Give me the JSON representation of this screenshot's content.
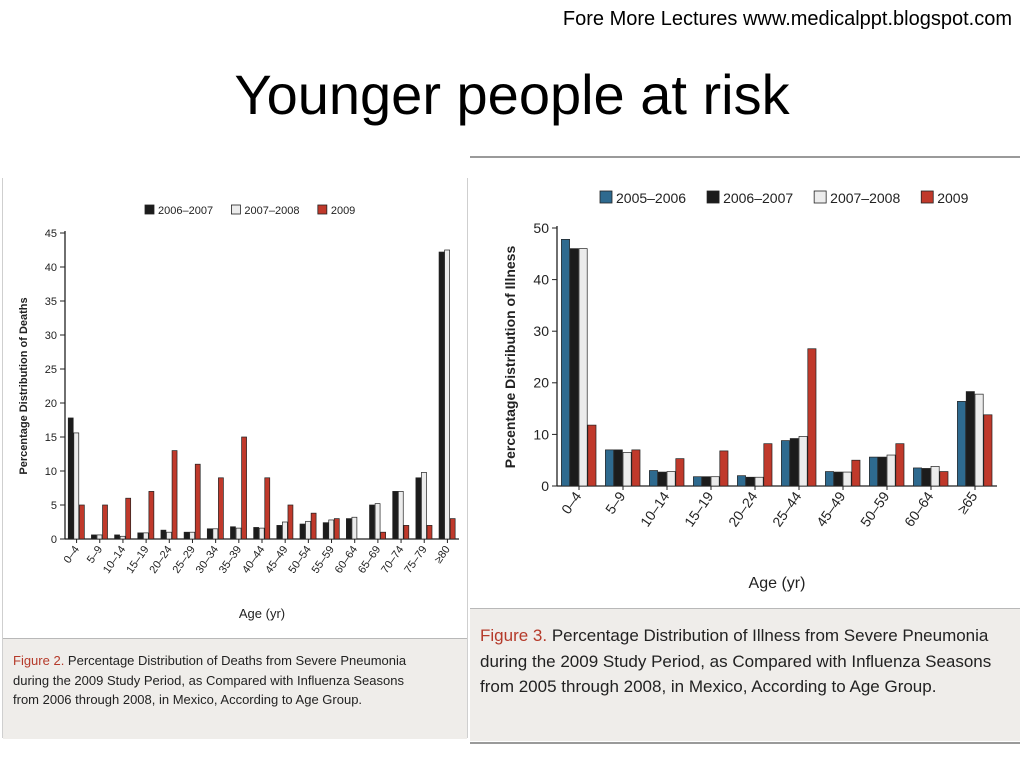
{
  "header": {
    "credit": "Fore More Lectures www.medicalppt.blogspot.com",
    "title": "Younger people at risk"
  },
  "figure_left": {
    "caption_label": "Figure 2.",
    "caption_lines": [
      " Percentage Distribution of Deaths from Severe Pneumonia",
      "during the 2009 Study Period, as Compared with Influenza Seasons",
      "from 2006 through 2008, in Mexico, According to Age Group."
    ]
  },
  "figure_right": {
    "caption_label": "Figure 3.",
    "caption_lines": [
      " Percentage Distribution of Illness from Severe Pneumonia",
      "during the 2009 Study Period, as Compared with Influenza Seasons",
      "from 2005 through 2008, in Mexico, According to Age Group."
    ]
  },
  "chart_data": [
    {
      "type": "bar",
      "xlabel": "Age (yr)",
      "ylabel": "Percentage Distribution of Deaths",
      "ylim": [
        0,
        45
      ],
      "yticks": [
        0,
        5,
        10,
        15,
        20,
        25,
        30,
        35,
        40,
        45
      ],
      "legend_position": "top",
      "categories": [
        "0–4",
        "5–9",
        "10–14",
        "15–19",
        "20–24",
        "25–29",
        "30–34",
        "35–39",
        "40–44",
        "45–49",
        "50–54",
        "55–59",
        "60–64",
        "65–69",
        "70–74",
        "75–79",
        "≥80"
      ],
      "series": [
        {
          "name": "2006–2007",
          "color": "#1c1c1c",
          "values": [
            17.8,
            0.6,
            0.6,
            0.9,
            1.3,
            1.0,
            1.5,
            1.8,
            1.7,
            2.0,
            2.2,
            2.4,
            3.0,
            5.0,
            7.0,
            9.0,
            42.2
          ]
        },
        {
          "name": "2007–2008",
          "color": "#ececec",
          "values": [
            15.6,
            0.6,
            0.4,
            0.9,
            1.0,
            1.0,
            1.5,
            1.6,
            1.6,
            2.5,
            2.6,
            2.8,
            3.2,
            5.2,
            7.0,
            9.8,
            42.5
          ]
        },
        {
          "name": "2009",
          "color": "#c0392b",
          "values": [
            5.0,
            5.0,
            6.0,
            7.0,
            13.0,
            11.0,
            9.0,
            15.0,
            9.0,
            5.0,
            3.8,
            3.0,
            0.0,
            1.0,
            2.0,
            2.0,
            3.0
          ]
        }
      ]
    },
    {
      "type": "bar",
      "xlabel": "Age (yr)",
      "ylabel": "Percentage Distribution of Illness",
      "ylim": [
        0,
        50
      ],
      "yticks": [
        0,
        10,
        20,
        30,
        40,
        50
      ],
      "legend_position": "top",
      "categories": [
        "0–4",
        "5–9",
        "10–14",
        "15–19",
        "20–24",
        "25–44",
        "45–49",
        "50–59",
        "60–64",
        "≥65"
      ],
      "series": [
        {
          "name": "2005–2006",
          "color": "#2e6a8f",
          "values": [
            47.8,
            7.0,
            3.0,
            1.8,
            2.0,
            8.8,
            2.8,
            5.6,
            3.5,
            16.4
          ]
        },
        {
          "name": "2006–2007",
          "color": "#1c1c1c",
          "values": [
            46.0,
            7.0,
            2.7,
            1.8,
            1.7,
            9.2,
            2.7,
            5.6,
            3.4,
            18.3
          ]
        },
        {
          "name": "2007–2008",
          "color": "#ececec",
          "values": [
            46.0,
            6.5,
            2.8,
            1.8,
            1.7,
            9.6,
            2.7,
            6.0,
            3.8,
            17.8
          ]
        },
        {
          "name": "2009",
          "color": "#c0392b",
          "values": [
            11.8,
            7.0,
            5.3,
            6.8,
            8.2,
            26.6,
            5.0,
            8.2,
            2.8,
            13.8
          ]
        }
      ]
    }
  ]
}
